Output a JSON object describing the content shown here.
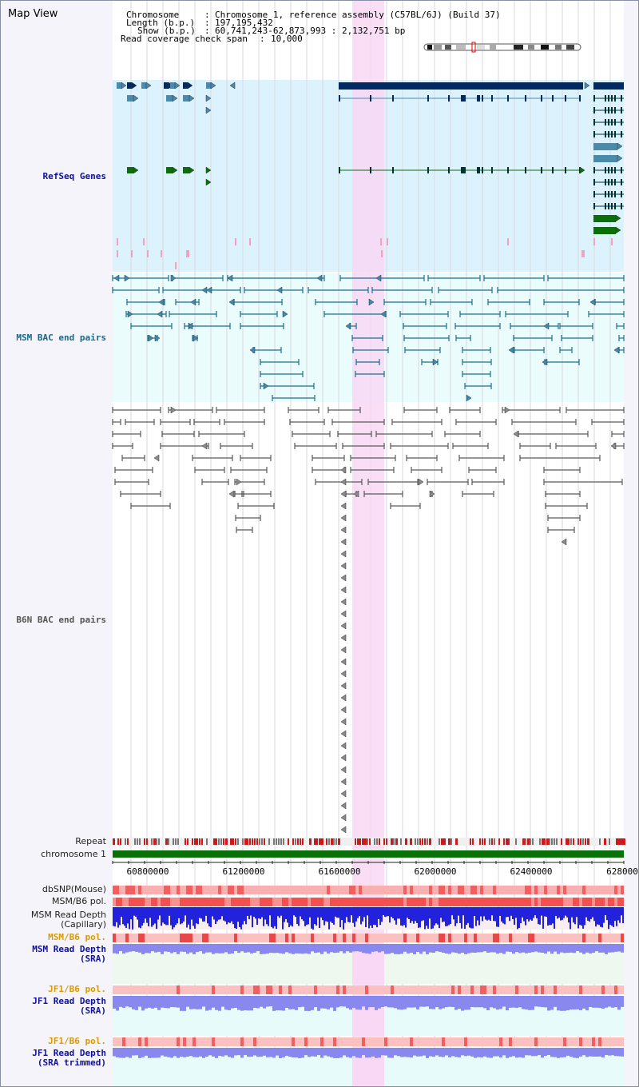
{
  "view_title": "Map View",
  "info": {
    "chromosome_label": "Chromosome",
    "chromosome_value": "Chromosome 1, reference assembly (C57BL/6J) (Build 37)",
    "length_label": "Length (b.p.)",
    "length_value": "197,195,432",
    "show_label": "Show (b.p.)",
    "show_value": "60,741,243-62,873,993 : 2,132,751 bp",
    "coverage_label": "Read coverage check span",
    "coverage_value": "10,000"
  },
  "tracks": {
    "refseq": "RefSeq Genes",
    "msm_bac": "MSM BAC end pairs",
    "b6n_bac": "B6N BAC end pairs",
    "repeat": "Repeat",
    "chromosome": "chromosome 1"
  },
  "axis_ticks": [
    "60800000",
    "61200000",
    "61600000",
    "62000000",
    "62400000",
    "628000"
  ],
  "lower_tracks": {
    "dbsnp": "dbSNP(Mouse)",
    "msm_b6_pol_1": "MSM/B6 pol.",
    "msm_read_depth_cap_1": "MSM Read Depth",
    "msm_read_depth_cap_2": "(Capillary)",
    "msm_b6_pol_2": "MSM/B6 pol.",
    "msm_read_depth_sra_1": "MSM Read Depth",
    "msm_read_depth_sra_2": "(SRA)",
    "jf1_b6_pol_1": "JF1/B6 pol.",
    "jf1_read_depth_sra_1": "JF1 Read Depth",
    "jf1_read_depth_sra_2": "(SRA)",
    "jf1_b6_pol_2": "JF1/B6 pol.",
    "jf1_read_depth_trim_1": "JF1 Read Depth",
    "jf1_read_depth_trim_2": "(SRA trimmed)"
  },
  "colors": {
    "refseq_bg": "#dcf2fc",
    "msm_bac_bg": "#ebfcfc",
    "highlight": "#f8d8f4",
    "refseq_dark": "#032a60",
    "refseq_mid": "#4a8aab",
    "refseq_green": "#0b6e0b",
    "msm_bac_line": "#1a6f8e",
    "b6n_bac_line": "#5a5a5a",
    "chromosome_bar": "#0a700a",
    "repeat_red": "#cc1a1a",
    "pol_red": "#f05555",
    "depth_blue": "#2222dd",
    "depth_lilac": "#8888ee",
    "label_blue": "#1010a0",
    "label_orange": "#dd9900"
  }
}
